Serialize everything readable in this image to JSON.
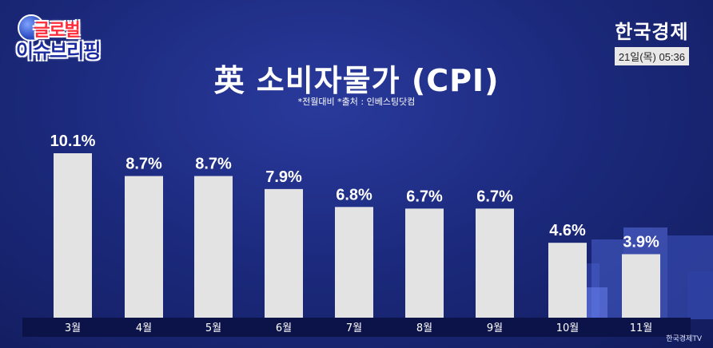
{
  "header": {
    "logo_line1": "글로벌",
    "logo_line2": "이슈브리핑",
    "broadcaster": "한국경제",
    "timestamp": "21일(목) 05:36"
  },
  "subtitle": "*전월대비 *출처 : 인베스팅닷컴",
  "watermark": "한국경제TV",
  "colors": {
    "bar": "#e3e3e3",
    "axis_band": "#0c1348",
    "text": "#ffffff"
  },
  "chart_data": {
    "type": "bar",
    "title": "英 소비자물가 (CPI)",
    "categories": [
      "3월",
      "4월",
      "5월",
      "6월",
      "7월",
      "8월",
      "9월",
      "10월",
      "11월"
    ],
    "values": [
      10.1,
      8.7,
      8.7,
      7.9,
      6.8,
      6.7,
      6.7,
      4.6,
      3.9
    ],
    "data_labels": [
      "10.1%",
      "8.7%",
      "8.7%",
      "7.9%",
      "6.8%",
      "6.7%",
      "6.7%",
      "4.6%",
      "3.9%"
    ],
    "unit": "%",
    "ylim": [
      0,
      10.1
    ],
    "grid": false,
    "legend": "none"
  }
}
